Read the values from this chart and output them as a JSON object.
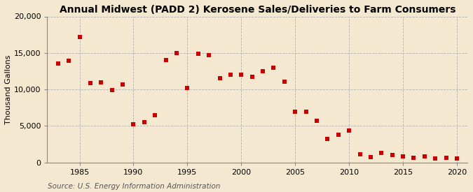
{
  "title": "Annual Midwest (PADD 2) Kerosene Sales/Deliveries to Farm Consumers",
  "ylabel": "Thousand Gallons",
  "source": "Source: U.S. Energy Information Administration",
  "background_color": "#f5e8d0",
  "plot_background_color": "#f5e8d0",
  "marker_color": "#cc0000",
  "marker_size": 4,
  "years": [
    1983,
    1984,
    1985,
    1986,
    1987,
    1988,
    1989,
    1990,
    1991,
    1992,
    1993,
    1994,
    1995,
    1996,
    1997,
    1998,
    1999,
    2000,
    2001,
    2002,
    2003,
    2004,
    2005,
    2006,
    2007,
    2008,
    2009,
    2010,
    2011,
    2012,
    2013,
    2014,
    2015,
    2016,
    2017,
    2018,
    2019,
    2020
  ],
  "values": [
    13500,
    13900,
    17200,
    10900,
    11000,
    9900,
    10700,
    5200,
    5500,
    6500,
    14000,
    15000,
    10200,
    14900,
    14700,
    11500,
    12000,
    12000,
    11700,
    12500,
    13000,
    11100,
    6900,
    6900,
    5700,
    3200,
    3800,
    4400,
    1100,
    700,
    1300,
    1000,
    800,
    600,
    800,
    500,
    600,
    500
  ],
  "xlim": [
    1982,
    2021
  ],
  "ylim": [
    0,
    20000
  ],
  "xticks": [
    1985,
    1990,
    1995,
    2000,
    2005,
    2010,
    2015,
    2020
  ],
  "yticks": [
    0,
    5000,
    10000,
    15000,
    20000
  ],
  "grid_color": "#b0b0b0",
  "title_fontsize": 10,
  "axis_fontsize": 8,
  "tick_fontsize": 8,
  "source_fontsize": 7.5
}
